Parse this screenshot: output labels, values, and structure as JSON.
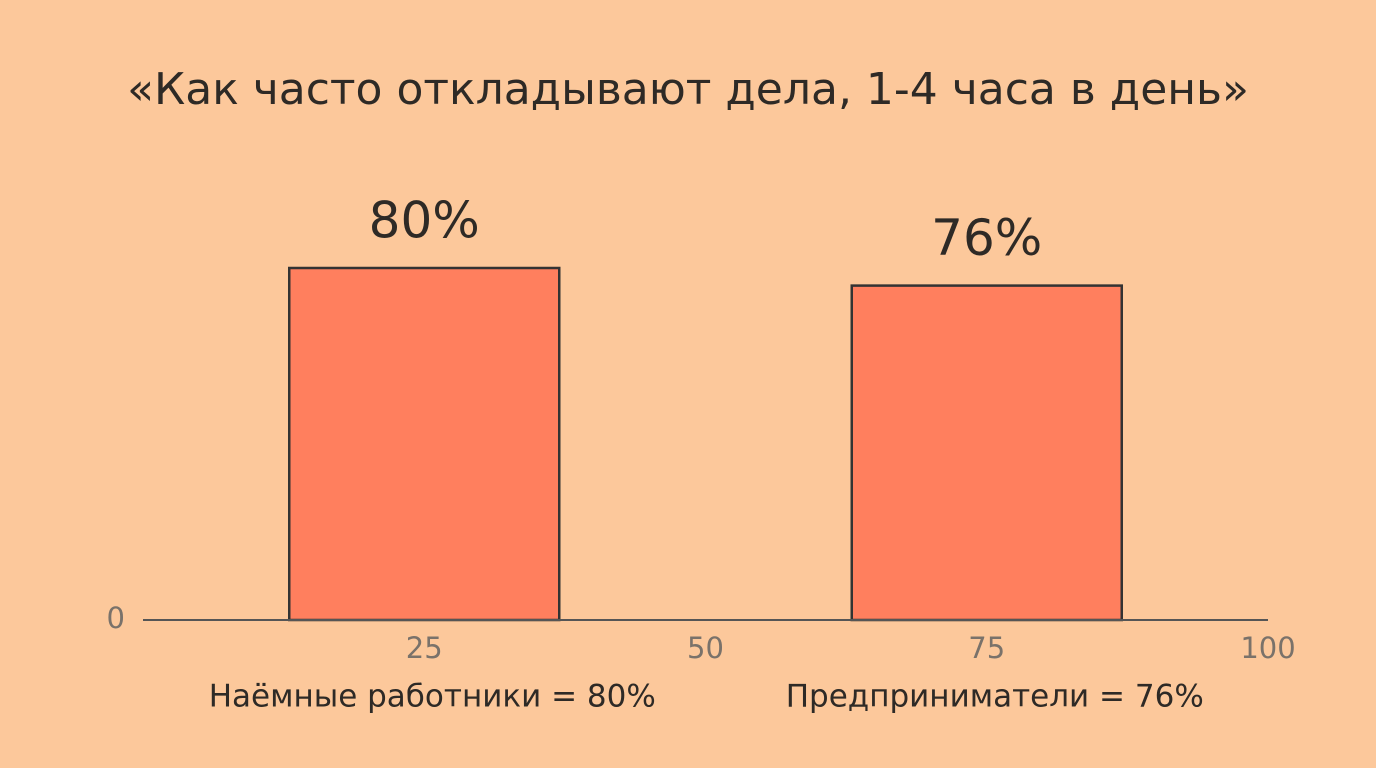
{
  "chart_data": {
    "type": "bar",
    "title": "«Как часто откладывают дела, 1-4 часа в день»",
    "x": [
      25,
      75
    ],
    "bar_labels": [
      "Наёмные работники = 80%",
      "Предприниматели = 76%"
    ],
    "values": [
      80,
      76
    ],
    "value_labels": [
      "80%",
      "76%"
    ],
    "color": "#ff7f5e",
    "xlim": [
      0,
      100
    ],
    "xticks": [
      25,
      50,
      75,
      100
    ],
    "ylim": [
      0,
      100
    ],
    "yticks": [
      0
    ]
  }
}
